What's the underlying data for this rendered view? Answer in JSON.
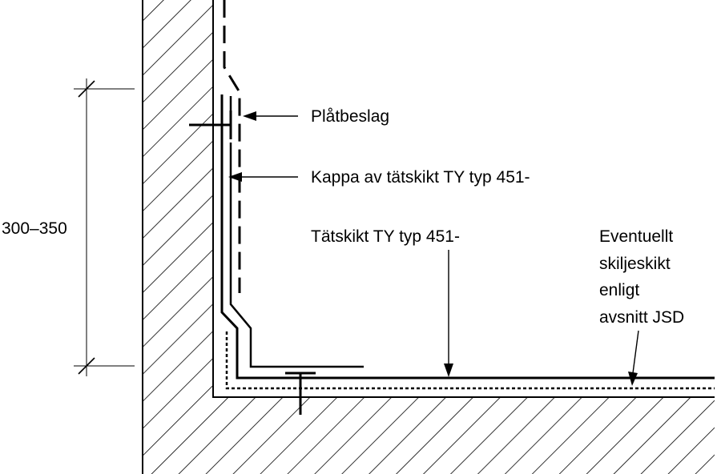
{
  "labels": {
    "platbeslag": "Plåtbeslag",
    "kappa": "Kappa av tätskikt TY typ 451-",
    "tatskikt": "Tätskikt TY typ 451-",
    "eventuellt": [
      "Eventuellt",
      "skiljeskikt",
      "enligt",
      "avsnitt JSD"
    ],
    "dimension": "300–350"
  },
  "colors": {
    "line": "#000000",
    "background": "#ffffff"
  }
}
